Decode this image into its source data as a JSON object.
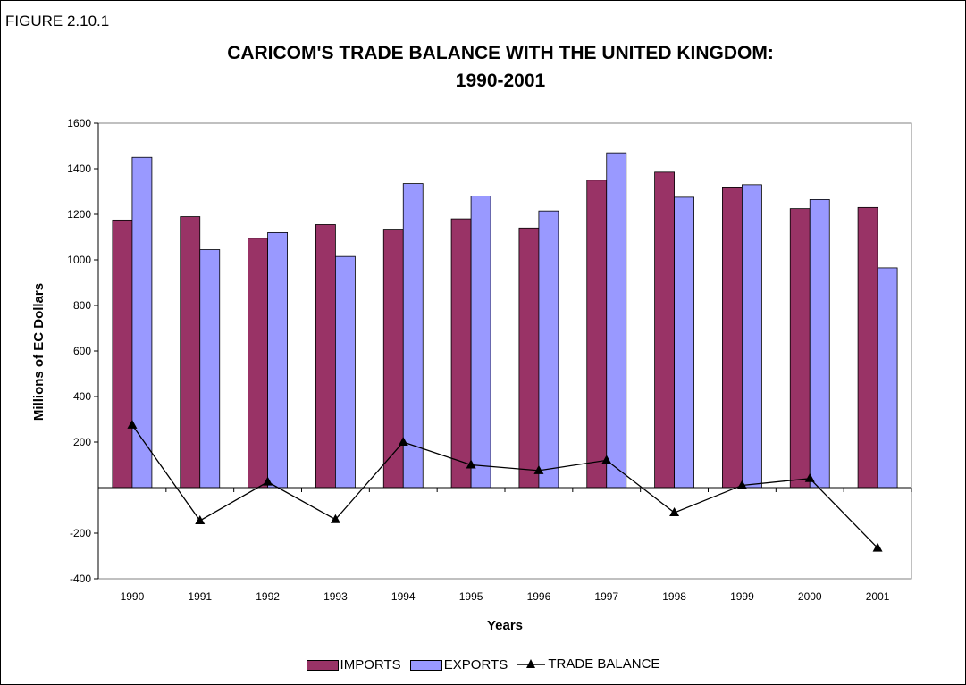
{
  "figure_label": "FIGURE 2.10.1",
  "chart_data": {
    "type": "bar",
    "title_lines": [
      "CARICOM'S TRADE BALANCE WITH THE UNITED KINGDOM:",
      "1990-2001"
    ],
    "xlabel": "Years",
    "ylabel": "Millions of EC Dollars",
    "ylim": [
      -400,
      1600
    ],
    "yticks": [
      -400,
      -200,
      200,
      400,
      600,
      800,
      1000,
      1200,
      1400,
      1600
    ],
    "categories": [
      "1990",
      "1991",
      "1992",
      "1993",
      "1994",
      "1995",
      "1996",
      "1997",
      "1998",
      "1999",
      "2000",
      "2001"
    ],
    "series": [
      {
        "name": "IMPORTS",
        "type": "bar",
        "color": "#993366",
        "values": [
          1175,
          1190,
          1095,
          1155,
          1135,
          1180,
          1140,
          1350,
          1385,
          1320,
          1225,
          1230
        ]
      },
      {
        "name": "EXPORTS",
        "type": "bar",
        "color": "#9999ff",
        "values": [
          1450,
          1045,
          1120,
          1015,
          1335,
          1280,
          1215,
          1470,
          1275,
          1330,
          1265,
          965
        ]
      },
      {
        "name": "TRADE BALANCE",
        "type": "line",
        "color": "#000000",
        "marker": "triangle",
        "values": [
          275,
          -145,
          25,
          -140,
          200,
          100,
          75,
          120,
          -110,
          10,
          40,
          -265
        ]
      }
    ],
    "grid": false,
    "legend": "bottom"
  }
}
